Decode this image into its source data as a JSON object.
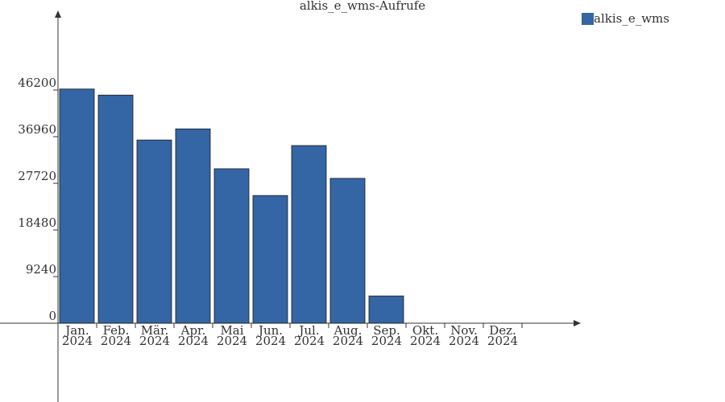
{
  "chart_data": {
    "type": "bar",
    "title": "alkis_e_wms-Aufrufe",
    "categories": [
      "Jan. 2024",
      "Feb. 2024",
      "Mär. 2024",
      "Apr. 2024",
      "Mai 2024",
      "Jun. 2024",
      "Jul. 2024",
      "Aug. 2024",
      "Sep. 2024",
      "Okt. 2024",
      "Nov. 2024",
      "Dez. 2024"
    ],
    "series": [
      {
        "name": "alkis_e_wms",
        "color": "#3465a4",
        "values": [
          46400,
          45200,
          36300,
          38500,
          30600,
          25300,
          35200,
          28700,
          5400,
          null,
          null,
          null
        ]
      }
    ],
    "ylim": [
      0,
      61650
    ],
    "yticks": [
      0,
      9240,
      18480,
      27720,
      36960,
      46200
    ],
    "legend": "top-right"
  }
}
